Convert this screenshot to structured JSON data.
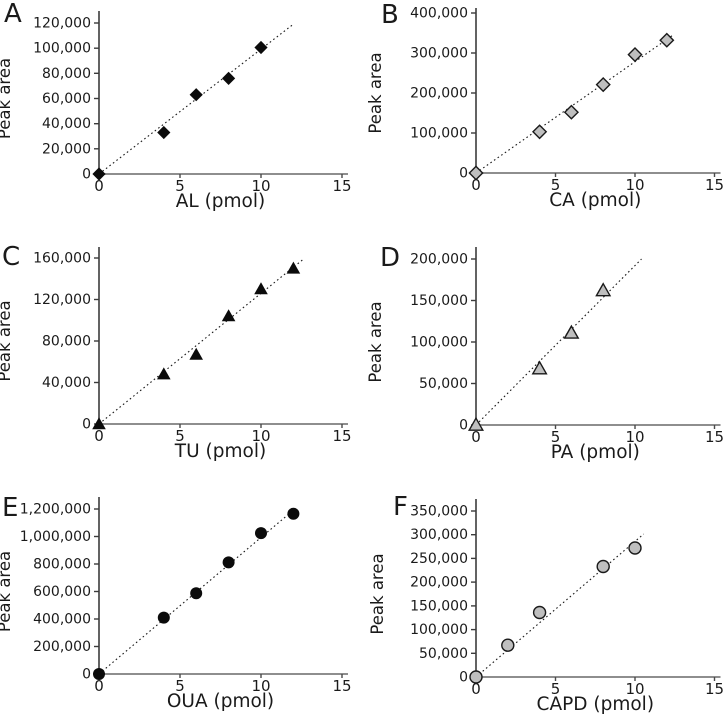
{
  "figure": {
    "y_axis_label": "Peak area",
    "colors": {
      "text": "#1a1a1a",
      "y_axis": "#3c3c3c",
      "x_axis": "#8e8e8e",
      "tick": "#4a4a4a",
      "trend_line": "#1a1a1a",
      "black_marker": "#0b0b0b",
      "gray_marker": "#bfbfbf",
      "marker_outline": "#1a1a1a"
    },
    "chart_data": [
      {
        "panel": "A",
        "type": "scatter",
        "marker": "diamond",
        "marker_style": "filled-black",
        "title": "",
        "xlabel": "AL (pmol)",
        "ylabel": "Peak area",
        "xlim": [
          0,
          15
        ],
        "x_ticks": [
          0,
          5,
          10,
          15
        ],
        "ylim": [
          0,
          120000
        ],
        "y_ticks": [
          0,
          20000,
          40000,
          60000,
          80000,
          100000,
          120000
        ],
        "x": [
          0,
          4,
          6,
          8,
          10
        ],
        "y": [
          0,
          33000,
          63000,
          76000,
          100500
        ],
        "trend": {
          "style": "dotted-through-origin",
          "slope": 9920,
          "x_end": 12.0
        },
        "grid": false,
        "legend": "none"
      },
      {
        "panel": "B",
        "type": "scatter",
        "marker": "diamond",
        "marker_style": "gray-outlined",
        "title": "",
        "xlabel": "CA (pmol)",
        "ylabel": "Peak area",
        "xlim": [
          0,
          15
        ],
        "x_ticks": [
          0,
          5,
          10,
          15
        ],
        "ylim": [
          0,
          400000
        ],
        "y_ticks": [
          0,
          100000,
          200000,
          300000,
          400000
        ],
        "x": [
          0,
          4,
          6,
          8,
          10,
          12
        ],
        "y": [
          0,
          103000,
          152000,
          221000,
          296000,
          332000
        ],
        "trend": {
          "style": "dotted-through-origin",
          "slope": 27830,
          "x_end": 12.45
        },
        "grid": false,
        "legend": "none"
      },
      {
        "panel": "C",
        "type": "scatter",
        "marker": "triangle",
        "marker_style": "filled-black",
        "title": "",
        "xlabel": "TU (pmol)",
        "ylabel": "Peak area",
        "xlim": [
          0,
          15
        ],
        "x_ticks": [
          0,
          5,
          10,
          15
        ],
        "ylim": [
          0,
          160000
        ],
        "y_ticks": [
          0,
          40000,
          80000,
          120000,
          160000
        ],
        "x": [
          0,
          4,
          6,
          8,
          10,
          12
        ],
        "y": [
          0,
          48000,
          67000,
          104000,
          130000,
          150000
        ],
        "trend": {
          "style": "dotted-through-origin",
          "slope": 12590,
          "x_end": 12.6
        },
        "grid": false,
        "legend": "none"
      },
      {
        "panel": "D",
        "type": "scatter",
        "marker": "triangle",
        "marker_style": "gray-outlined",
        "title": "",
        "xlabel": "PA (pmol)",
        "ylabel": "Peak area",
        "xlim": [
          0,
          15
        ],
        "x_ticks": [
          0,
          5,
          10,
          15
        ],
        "ylim": [
          0,
          200000
        ],
        "y_ticks": [
          0,
          50000,
          100000,
          150000,
          200000
        ],
        "x": [
          0,
          4,
          6,
          8
        ],
        "y": [
          0,
          68000,
          111000,
          162000
        ],
        "trend": {
          "style": "dotted-through-origin",
          "slope": 19210,
          "x_end": 10.42
        },
        "grid": false,
        "legend": "none"
      },
      {
        "panel": "E",
        "type": "scatter",
        "marker": "circle",
        "marker_style": "filled-black",
        "title": "",
        "xlabel": "OUA (pmol)",
        "ylabel": "Peak area",
        "xlim": [
          0,
          15
        ],
        "x_ticks": [
          0,
          5,
          10,
          15
        ],
        "ylim": [
          0,
          1200000
        ],
        "y_ticks": [
          0,
          200000,
          400000,
          600000,
          800000,
          1000000,
          1200000
        ],
        "x": [
          0,
          4,
          6,
          8,
          10,
          12
        ],
        "y": [
          0,
          410000,
          588000,
          812000,
          1025000,
          1165000
        ],
        "trend": {
          "style": "dotted-through-origin",
          "slope": 99310,
          "x_end": 12.25
        },
        "grid": false,
        "legend": "none"
      },
      {
        "panel": "F",
        "type": "scatter",
        "marker": "circle",
        "marker_style": "gray-outlined",
        "title": "",
        "xlabel": "CAPD (pmol)",
        "ylabel": "Peak area",
        "xlim": [
          0,
          15
        ],
        "x_ticks": [
          0,
          5,
          10,
          15
        ],
        "ylim": [
          0,
          350000
        ],
        "y_ticks": [
          0,
          50000,
          100000,
          150000,
          200000,
          250000,
          300000,
          350000
        ],
        "x": [
          0,
          2,
          4,
          8,
          10
        ],
        "y": [
          0,
          67000,
          136000,
          233000,
          272000
        ],
        "trend": {
          "style": "dotted-through-origin",
          "slope": 28570,
          "x_end": 10.55
        },
        "grid": false,
        "legend": "none"
      }
    ]
  }
}
